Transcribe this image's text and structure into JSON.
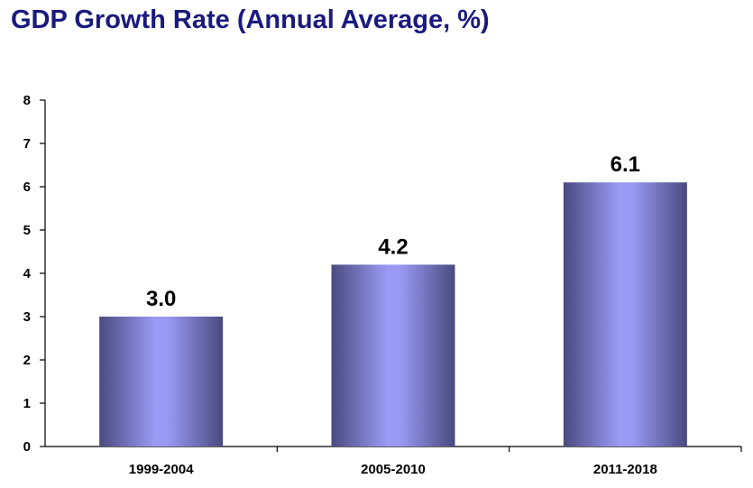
{
  "chart_data": {
    "type": "bar",
    "title": "GDP Growth Rate (Annual Average, %)",
    "categories": [
      "1999-2004",
      "2005-2010",
      "2011-2018"
    ],
    "values": [
      3.0,
      4.2,
      6.1
    ],
    "data_labels": [
      "3.0",
      "4.2",
      "6.1"
    ],
    "ylim": [
      0,
      8
    ],
    "yticks": [
      "0",
      "1",
      "2",
      "3",
      "4",
      "5",
      "6",
      "7",
      "8"
    ],
    "xlabel": "",
    "ylabel": "",
    "grid": false,
    "legend": "none",
    "colors": {
      "bar_edge": "#4a4a80",
      "bar_mid": "#9a9af5",
      "title": "#1a1a7e"
    }
  }
}
